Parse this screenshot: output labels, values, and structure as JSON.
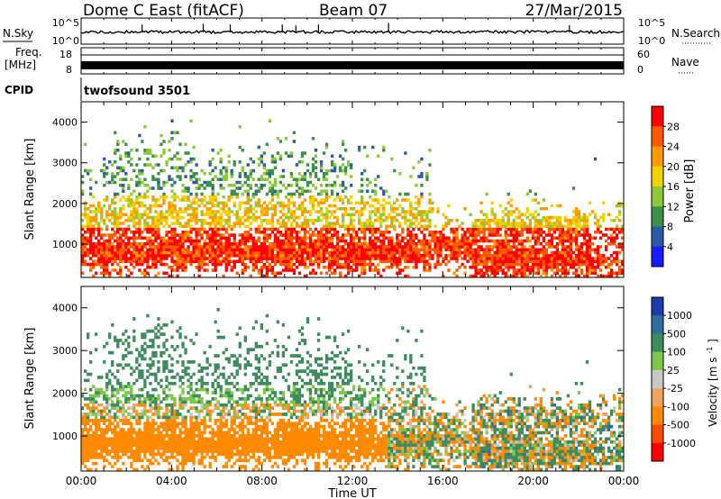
{
  "header": {
    "station": "Dome C East (fitACF)",
    "beam": "Beam 07",
    "date": "27/Mar/2015"
  },
  "colors": {
    "power_scale": [
      "#ff0000",
      "#ff5a00",
      "#ff9a00",
      "#f2d200",
      "#8fc93a",
      "#3d8f4a",
      "#2b5aa8",
      "#1a1aff"
    ],
    "velocity_scale": [
      "#1c3aa8",
      "#2e6f9e",
      "#3e8c5e",
      "#7ec94a",
      "#c8c8c8",
      "#f2a25a",
      "#ff8a00",
      "#ff4a00",
      "#ff0000"
    ]
  },
  "chart_data": [
    {
      "type": "line",
      "panel": "noise",
      "left_label": "N.Sky",
      "right_label": "N.Search",
      "y_ticks_left": [
        "10^5",
        "10^0"
      ],
      "y_ticks_right": [
        "10^5",
        "10^0"
      ],
      "scale": "log"
    },
    {
      "type": "line",
      "panel": "frequency",
      "left_label": "Freq.",
      "left_unit": "[MHz]",
      "left_ticks": [
        "18",
        "8"
      ],
      "right_label": "Nave",
      "right_ticks": [
        "60",
        "0"
      ]
    },
    {
      "type": "table",
      "panel": "cpid",
      "label": "CPID",
      "value": "twofsound 3501"
    },
    {
      "type": "heatmap",
      "panel": "power",
      "ylabel": "Slant Range [km]",
      "ylim": [
        180,
        4500
      ],
      "yticks": [
        1000,
        2000,
        3000,
        4000
      ],
      "xlim": [
        0,
        24
      ],
      "color_label": "Power [dB]",
      "color_ticks": [
        "28",
        "24",
        "20",
        "16",
        "12",
        "8",
        "4"
      ],
      "vmin": 0,
      "vmax": 32
    },
    {
      "type": "heatmap",
      "panel": "velocity",
      "ylabel": "Slant Range [km]",
      "ylim": [
        180,
        4500
      ],
      "yticks": [
        1000,
        2000,
        3000,
        4000
      ],
      "xlim": [
        0,
        24
      ],
      "xlabel": "Time UT",
      "xticks": [
        "00:00",
        "04:00",
        "08:00",
        "12:00",
        "16:00",
        "20:00",
        "00:00"
      ],
      "color_label": "Velocity",
      "color_unit": "[m s",
      "color_unit_sup": "-1",
      "color_unit_close": "]",
      "color_ticks": [
        "1000",
        "500",
        "100",
        "25",
        "-25",
        "-100",
        "-500",
        "-1000"
      ]
    }
  ]
}
